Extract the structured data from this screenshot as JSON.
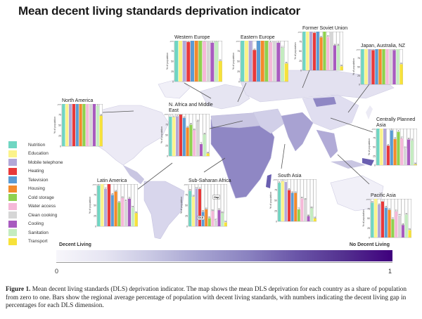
{
  "title": "Mean decent living standards deprivation indicator",
  "legend": {
    "items": [
      {
        "label": "Nutrition",
        "color": "#6fd6c2"
      },
      {
        "label": "Education",
        "color": "#fbf38a"
      },
      {
        "label": "Mobile telephone",
        "color": "#b2a8d8"
      },
      {
        "label": "Heating",
        "color": "#e8393a"
      },
      {
        "label": "Television",
        "color": "#5a9bd4"
      },
      {
        "label": "Housing",
        "color": "#f38a2c"
      },
      {
        "label": "Cold storage",
        "color": "#8fd14f"
      },
      {
        "label": "Water access",
        "color": "#f5b8d8"
      },
      {
        "label": "Clean cooking",
        "color": "#d6d6d6"
      },
      {
        "label": "Cooling",
        "color": "#a85bbf"
      },
      {
        "label": "Sanitation",
        "color": "#c4ecc0"
      },
      {
        "label": "Transport",
        "color": "#f7e23a"
      }
    ]
  },
  "colorbar": {
    "left_label": "Decent Living",
    "right_label": "No Decent Living",
    "min_tick": "0",
    "max_tick": "1"
  },
  "caption": {
    "lead": "Figure 1.",
    "text": " Mean decent living standards (DLS) deprivation indicator. The map shows the mean DLS deprivation for each country as a share of population from zero to one. Bars show the regional average percentage of population with decent living standards, with numbers indicating the decent living gap in percentages for each DLS dimension."
  },
  "chart_data": {
    "type": "bar",
    "title": "Mean decent living standards deprivation indicator",
    "ylabel": "% of population",
    "ylim": [
      0,
      100
    ],
    "yticks": [
      "0",
      "25",
      "50",
      "75",
      "100"
    ],
    "categories": [
      "Nutrition",
      "Education",
      "Mobile telephone",
      "Heating",
      "Television",
      "Housing",
      "Cold storage",
      "Water access",
      "Clean cooking",
      "Cooling",
      "Sanitation",
      "Transport"
    ],
    "annotations": [
      "DLS",
      "Gap"
    ],
    "regions": [
      {
        "name": "Western Europe",
        "values": [
          100,
          100,
          100,
          97,
          100,
          100,
          100,
          98,
          100,
          95,
          98,
          50
        ]
      },
      {
        "name": "Eastern Europe",
        "values": [
          100,
          100,
          100,
          77,
          100,
          100,
          100,
          96,
          100,
          95,
          83,
          44
        ]
      },
      {
        "name": "Former Soviet Union",
        "values": [
          100,
          100,
          100,
          97,
          100,
          85,
          100,
          86,
          100,
          64,
          64,
          10
        ]
      },
      {
        "name": "Japan, Australia, NZ",
        "values": [
          100,
          100,
          100,
          97,
          100,
          100,
          100,
          100,
          100,
          97,
          100,
          57
        ]
      },
      {
        "name": "North America",
        "values": [
          100,
          100,
          100,
          100,
          100,
          100,
          100,
          100,
          100,
          100,
          95,
          72
        ]
      },
      {
        "name": "N. Africa and Middle East",
        "values": [
          93,
          92,
          94,
          98,
          90,
          67,
          74,
          61,
          82,
          28,
          51,
          6
        ]
      },
      {
        "name": "Centrally Planned Asia",
        "values": [
          100,
          100,
          100,
          53,
          95,
          71,
          91,
          73,
          46,
          70,
          67,
          2
        ]
      },
      {
        "name": "Latin America",
        "values": [
          96,
          100,
          88,
          100,
          74,
          82,
          56,
          67,
          59,
          65,
          44,
          31
        ]
      },
      {
        "name": "Sub-Saharan Africa",
        "values": [
          84,
          70,
          89,
          88,
          34,
          40,
          19,
          36,
          13,
          38,
          31,
          9
        ]
      },
      {
        "name": "South Asia",
        "values": [
          91,
          95,
          93,
          74,
          67,
          67,
          28,
          54,
          51,
          12,
          31,
          7
        ]
      },
      {
        "name": "Pacific Asia",
        "values": [
          90,
          100,
          84,
          93,
          77,
          71,
          47,
          67,
          56,
          32,
          59,
          19
        ]
      }
    ]
  }
}
